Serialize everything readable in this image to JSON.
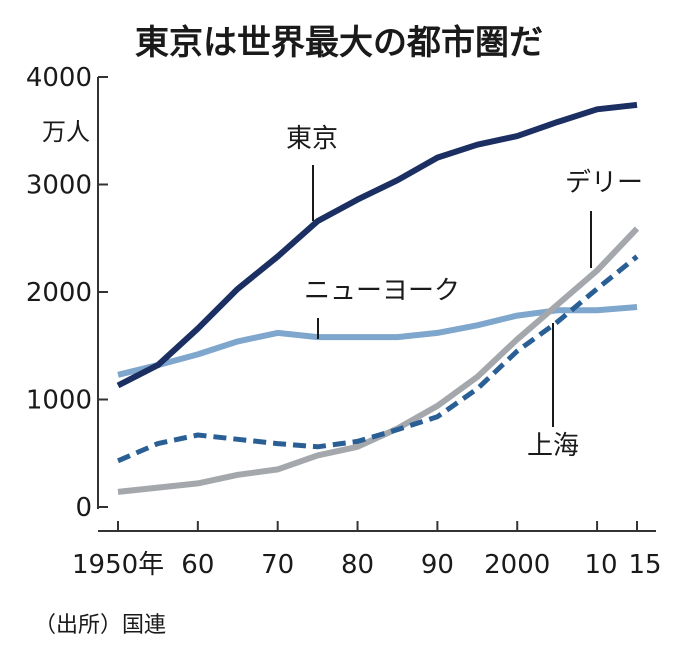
{
  "chart_data": {
    "type": "line",
    "title": "東京は世界最大の都市圏だ",
    "unit": "万人",
    "source": "（出所）国連",
    "xlim": [
      1950,
      2015
    ],
    "ylim": [
      0,
      4000
    ],
    "x_ticks": [
      {
        "value": 1950,
        "label": "1950年"
      },
      {
        "value": 1960,
        "label": "60"
      },
      {
        "value": 1970,
        "label": "70"
      },
      {
        "value": 1980,
        "label": "80"
      },
      {
        "value": 1990,
        "label": "90"
      },
      {
        "value": 2000,
        "label": "2000"
      },
      {
        "value": 2010,
        "label": "10"
      },
      {
        "value": 2015,
        "label": "15"
      }
    ],
    "y_ticks": [
      0,
      1000,
      2000,
      3000,
      4000
    ],
    "x": [
      1950,
      1955,
      1960,
      1965,
      1970,
      1975,
      1980,
      1985,
      1990,
      1995,
      2000,
      2005,
      2010,
      2015
    ],
    "series": [
      {
        "name": "東京",
        "color": "#1b2f63",
        "style": "solid",
        "values": [
          1130,
          1320,
          1660,
          2030,
          2330,
          2660,
          2860,
          3040,
          3250,
          3370,
          3450,
          3580,
          3700,
          3740
        ]
      },
      {
        "name": "ニューヨーク",
        "color": "#7fa6cc",
        "style": "solid",
        "values": [
          1230,
          1320,
          1420,
          1540,
          1620,
          1580,
          1580,
          1580,
          1620,
          1690,
          1780,
          1830,
          1830,
          1860
        ]
      },
      {
        "name": "デリー",
        "color": "#a4a7ab",
        "style": "solid",
        "values": [
          140,
          180,
          220,
          300,
          350,
          480,
          560,
          730,
          940,
          1210,
          1560,
          1880,
          2200,
          2590
        ]
      },
      {
        "name": "上海",
        "color": "#2a5f95",
        "style": "dashed",
        "values": [
          430,
          590,
          670,
          630,
          590,
          560,
          610,
          720,
          840,
          1100,
          1450,
          1720,
          2030,
          2330
        ]
      }
    ],
    "grid": false,
    "legend": "inline labels"
  }
}
